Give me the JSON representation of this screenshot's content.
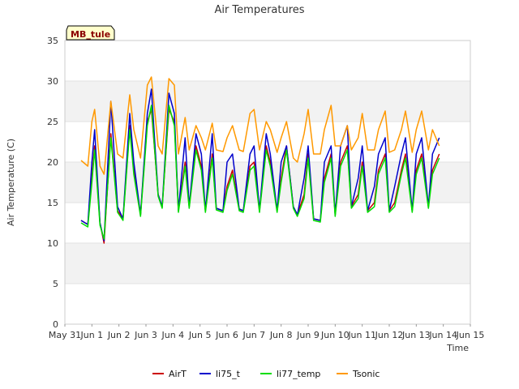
{
  "chart_data": {
    "type": "line",
    "title": "Air Temperatures",
    "xlabel": "Time",
    "ylabel": "Air Temperature (C)",
    "ylim": [
      0,
      35
    ],
    "yticks": [
      0,
      5,
      10,
      15,
      20,
      25,
      30,
      35
    ],
    "xlim": [
      0,
      15
    ],
    "xticks": [
      {
        "v": 0,
        "label": "May 31"
      },
      {
        "v": 1,
        "label": "Jun 1"
      },
      {
        "v": 2,
        "label": "Jun 2"
      },
      {
        "v": 3,
        "label": "Jun 3"
      },
      {
        "v": 4,
        "label": "Jun 4"
      },
      {
        "v": 5,
        "label": "Jun 5"
      },
      {
        "v": 6,
        "label": "Jun 6"
      },
      {
        "v": 7,
        "label": "Jun 7"
      },
      {
        "v": 8,
        "label": "Jun 8"
      },
      {
        "v": 9,
        "label": "Jun 9"
      },
      {
        "v": 10,
        "label": "Jun 10"
      },
      {
        "v": 11,
        "label": "Jun 11"
      },
      {
        "v": 12,
        "label": "Jun 12"
      },
      {
        "v": 13,
        "label": "Jun 13"
      },
      {
        "v": 14,
        "label": "Jun 14"
      },
      {
        "v": 15,
        "label": "Jun 15"
      }
    ],
    "grid": true,
    "legend_position": "bottom",
    "station_label": "MB_tule",
    "series": [
      {
        "name": "AirT",
        "color": "#cc0000",
        "x": [
          0.6,
          0.85,
          1.0,
          1.1,
          1.3,
          1.45,
          1.7,
          1.95,
          2.15,
          2.4,
          2.55,
          2.8,
          3.05,
          3.2,
          3.45,
          3.6,
          3.85,
          4.05,
          4.2,
          4.45,
          4.6,
          4.85,
          5.05,
          5.2,
          5.45,
          5.6,
          5.85,
          6.0,
          6.2,
          6.45,
          6.6,
          6.85,
          7.0,
          7.2,
          7.45,
          7.6,
          7.85,
          8.0,
          8.2,
          8.45,
          8.6,
          8.85,
          9.0,
          9.2,
          9.45,
          9.6,
          9.85,
          10.0,
          10.2,
          10.45,
          10.6,
          10.85,
          11.0,
          11.2,
          11.45,
          11.6,
          11.85,
          12.0,
          12.2,
          12.45,
          12.6,
          12.85,
          13.0,
          13.2,
          13.45,
          13.6,
          13.85
        ],
        "y": [
          12.8,
          12.3,
          18,
          22,
          12.5,
          10,
          23.5,
          14,
          13,
          24.5,
          19,
          13.5,
          25,
          26.5,
          16,
          14.5,
          26.5,
          25,
          14,
          20,
          14.5,
          22,
          19.5,
          14,
          21,
          14.3,
          14,
          17,
          19,
          14.2,
          14,
          19.5,
          20,
          14,
          22,
          20,
          14,
          18,
          22,
          14.5,
          13.5,
          16,
          21,
          13,
          12.8,
          18,
          21,
          13.5,
          20,
          22,
          14.5,
          16,
          20,
          14,
          15,
          19,
          21,
          14,
          15,
          19,
          21,
          14,
          19,
          21,
          14.5,
          19,
          21
        ]
      },
      {
        "name": "li75_t",
        "color": "#0000cc",
        "x": [
          0.6,
          0.85,
          1.0,
          1.1,
          1.3,
          1.45,
          1.7,
          1.95,
          2.15,
          2.4,
          2.55,
          2.8,
          3.05,
          3.2,
          3.45,
          3.6,
          3.85,
          4.05,
          4.2,
          4.45,
          4.6,
          4.85,
          5.05,
          5.2,
          5.45,
          5.6,
          5.85,
          6.0,
          6.2,
          6.45,
          6.6,
          6.85,
          7.0,
          7.2,
          7.45,
          7.6,
          7.85,
          8.0,
          8.2,
          8.45,
          8.6,
          8.85,
          9.0,
          9.2,
          9.45,
          9.6,
          9.85,
          10.0,
          10.2,
          10.45,
          10.6,
          10.85,
          11.0,
          11.2,
          11.45,
          11.6,
          11.85,
          12.0,
          12.2,
          12.45,
          12.6,
          12.85,
          13.0,
          13.2,
          13.45,
          13.6,
          13.85
        ],
        "y": [
          12.8,
          12.3,
          20,
          24,
          12.5,
          10.3,
          27.5,
          14.5,
          13,
          26,
          20,
          13.5,
          26,
          29,
          16,
          14.5,
          28.5,
          26,
          14,
          23,
          14.5,
          23.5,
          21,
          14,
          23.5,
          14.3,
          14,
          20,
          21,
          14.2,
          14,
          21,
          22,
          14,
          23.5,
          21,
          14,
          20,
          22,
          14.5,
          13.5,
          18,
          22,
          13,
          12.8,
          20,
          22,
          13.5,
          22,
          24.5,
          14.5,
          18,
          22,
          14,
          17,
          21,
          23,
          14,
          17,
          21,
          23,
          14,
          21,
          23,
          14.5,
          21,
          23
        ]
      },
      {
        "name": "li77_temp",
        "color": "#00dd00",
        "x": [
          0.6,
          0.85,
          1.0,
          1.1,
          1.3,
          1.45,
          1.7,
          1.95,
          2.15,
          2.4,
          2.55,
          2.8,
          3.05,
          3.2,
          3.45,
          3.6,
          3.85,
          4.05,
          4.2,
          4.45,
          4.6,
          4.85,
          5.05,
          5.2,
          5.45,
          5.6,
          5.85,
          6.0,
          6.2,
          6.45,
          6.6,
          6.85,
          7.0,
          7.2,
          7.45,
          7.6,
          7.85,
          8.0,
          8.2,
          8.45,
          8.6,
          8.85,
          9.0,
          9.2,
          9.45,
          9.6,
          9.85,
          10.0,
          10.2,
          10.45,
          10.6,
          10.85,
          11.0,
          11.2,
          11.45,
          11.6,
          11.85,
          12.0,
          12.2,
          12.45,
          12.6,
          12.85,
          13.0,
          13.2,
          13.45,
          13.6,
          13.85
        ],
        "y": [
          12.5,
          12,
          17.5,
          21.5,
          12.2,
          10.5,
          23,
          13.8,
          12.8,
          24,
          18.5,
          13.3,
          24.5,
          27,
          15.8,
          14.3,
          27,
          24.5,
          13.8,
          19.5,
          14.3,
          21.5,
          19,
          13.8,
          20.5,
          14.1,
          13.8,
          16.5,
          18.5,
          14,
          13.8,
          19,
          19.5,
          13.8,
          21.5,
          19.5,
          13.8,
          17.5,
          21.5,
          14.3,
          13.3,
          15.5,
          20.5,
          12.8,
          12.6,
          17.5,
          20.5,
          13.3,
          19.5,
          21.5,
          14.3,
          15.5,
          19.5,
          13.8,
          14.5,
          18.5,
          20.5,
          13.8,
          14.5,
          18.5,
          20.5,
          13.8,
          18.5,
          20.5,
          14.3,
          18.5,
          20.5
        ]
      },
      {
        "name": "Tsonic",
        "color": "#ff9900",
        "x": [
          0.6,
          0.85,
          1.0,
          1.1,
          1.3,
          1.45,
          1.7,
          1.95,
          2.15,
          2.4,
          2.55,
          2.8,
          3.05,
          3.2,
          3.45,
          3.6,
          3.85,
          4.05,
          4.2,
          4.45,
          4.6,
          4.85,
          5.05,
          5.2,
          5.45,
          5.6,
          5.85,
          6.0,
          6.2,
          6.45,
          6.6,
          6.85,
          7.0,
          7.2,
          7.45,
          7.6,
          7.85,
          8.0,
          8.2,
          8.45,
          8.6,
          8.85,
          9.0,
          9.2,
          9.45,
          9.6,
          9.85,
          10.0,
          10.2,
          10.45,
          10.6,
          10.85,
          11.0,
          11.2,
          11.45,
          11.6,
          11.85,
          12.0,
          12.2,
          12.45,
          12.6,
          12.85,
          13.0,
          13.2,
          13.45,
          13.6,
          13.85
        ],
        "y": [
          20.2,
          19.5,
          25,
          26.5,
          19.5,
          18.5,
          27.5,
          21,
          20.5,
          28.3,
          24,
          20.5,
          29.5,
          30.5,
          22,
          21,
          30.3,
          29.5,
          21,
          25.5,
          21.5,
          24.5,
          23,
          21.5,
          24.8,
          21.5,
          21.3,
          23,
          24.5,
          21.5,
          21.3,
          26,
          26.5,
          21.5,
          25,
          24,
          21.2,
          23,
          25,
          20.5,
          20,
          23.5,
          26.5,
          21,
          21,
          24,
          27,
          22,
          22,
          24.5,
          21.5,
          23,
          26,
          21.5,
          21.5,
          24,
          26.3,
          21.2,
          21.5,
          24,
          26.3,
          21.2,
          24,
          26.3,
          21.5,
          24,
          22
        ]
      }
    ]
  }
}
